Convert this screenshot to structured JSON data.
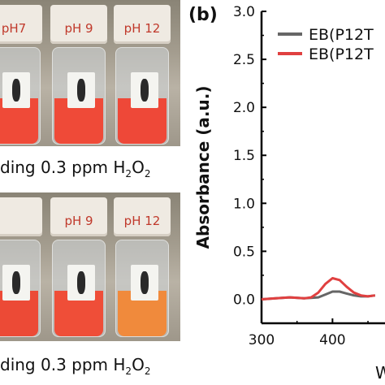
{
  "panel_a": {
    "top_photo": {
      "vials": [
        {
          "cap_label": "pH7",
          "liquid_color": "#ef4a38"
        },
        {
          "cap_label": "pH 9",
          "liquid_color": "#ef4a38"
        },
        {
          "cap_label": "pH  12",
          "liquid_color": "#ee4838"
        }
      ],
      "caption_prefix": "ding 0.3 ppm H",
      "caption_sub": "2",
      "caption_mid": "O",
      "caption_sub2": "2"
    },
    "bottom_photo": {
      "vials": [
        {
          "cap_label": "",
          "liquid_color": "#ec4a36"
        },
        {
          "cap_label": "pH 9",
          "liquid_color": "#ef4e38"
        },
        {
          "cap_label": "pH  12",
          "liquid_color": "#f08a3c"
        }
      ],
      "caption_prefix": "ding 0.3 ppm H",
      "caption_sub": "2",
      "caption_mid": "O",
      "caption_sub2": "2"
    }
  },
  "panel_b_label": "(b)",
  "chart_data": {
    "type": "line",
    "title": "",
    "xlabel": "W",
    "ylabel": "Absorbance (a.u.)",
    "xlim": [
      300,
      474
    ],
    "ylim": [
      -0.25,
      3.0
    ],
    "yticks": [
      "0.0",
      "0.5",
      "1.0",
      "1.5",
      "2.0",
      "2.5",
      "3.0"
    ],
    "xticks": [
      "300",
      "400"
    ],
    "legend_position": "top-right",
    "series": [
      {
        "name": "EB(P12T",
        "color": "#666666",
        "x": [
          300,
          320,
          340,
          360,
          380,
          390,
          400,
          410,
          420,
          430,
          440,
          450,
          460
        ],
        "y": [
          0.0,
          0.01,
          0.02,
          0.01,
          0.02,
          0.05,
          0.08,
          0.08,
          0.06,
          0.04,
          0.03,
          0.03,
          0.04
        ]
      },
      {
        "name": "EB(P12T",
        "color": "#e04040",
        "x": [
          300,
          320,
          340,
          360,
          370,
          380,
          390,
          400,
          410,
          420,
          430,
          440,
          450,
          460
        ],
        "y": [
          0.0,
          0.01,
          0.02,
          0.01,
          0.02,
          0.07,
          0.16,
          0.22,
          0.2,
          0.13,
          0.07,
          0.04,
          0.03,
          0.04
        ]
      }
    ]
  }
}
